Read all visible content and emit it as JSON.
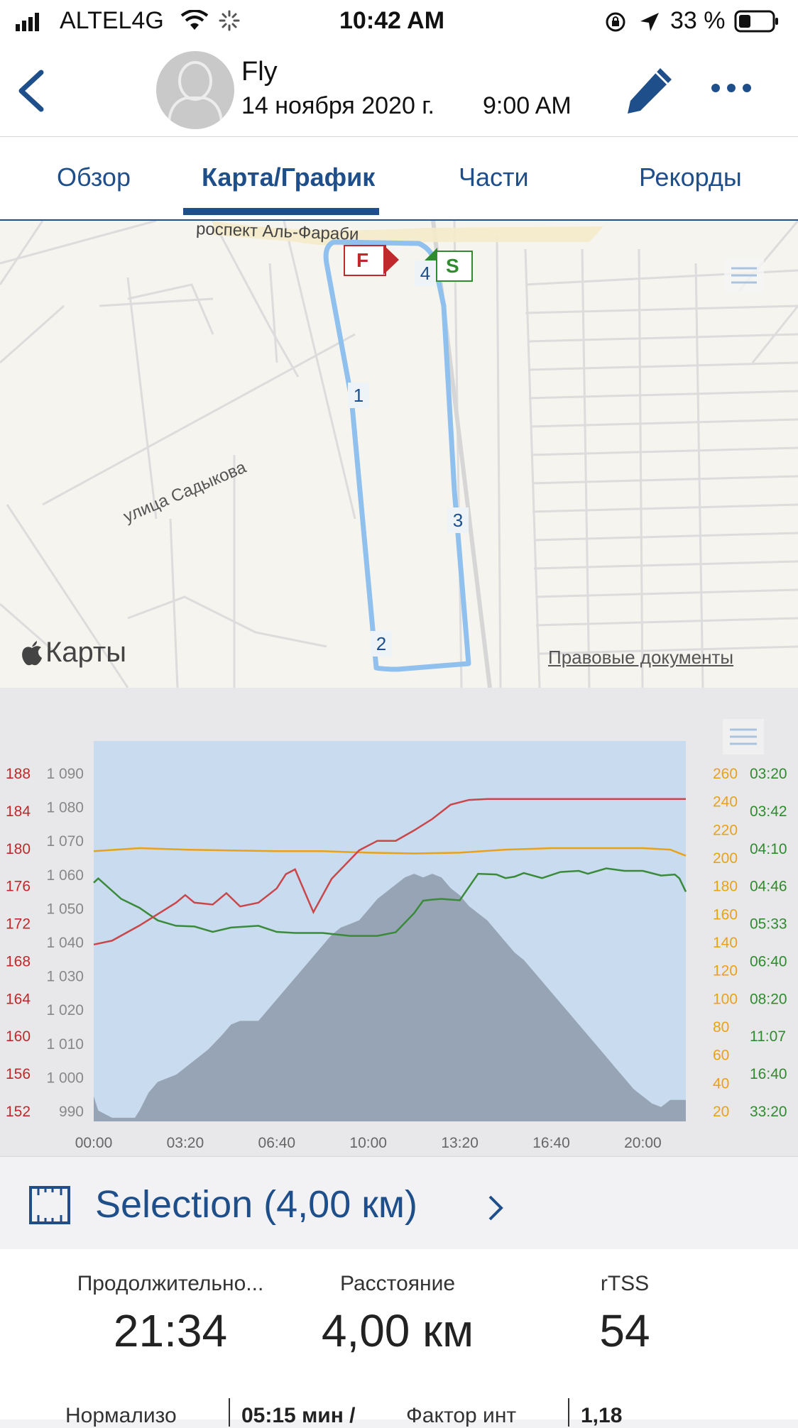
{
  "status_bar": {
    "carrier": "ALTEL4G",
    "time": "10:42 AM",
    "battery": "33 %",
    "icons": [
      "signal-icon",
      "wifi-icon",
      "activity-spinner-icon",
      "rotation-lock-icon",
      "location-arrow-icon",
      "battery-icon"
    ]
  },
  "header": {
    "back_icon": "chevron-left-icon",
    "title": "Fly",
    "date": "14 ноября 2020 г.",
    "time": "9:00 AM",
    "edit_icon": "pencil-icon",
    "more_icon": "more-dots-icon"
  },
  "tabs": [
    {
      "label": "Обзор",
      "active": false
    },
    {
      "label": "Карта/График",
      "active": true
    },
    {
      "label": "Части",
      "active": false
    },
    {
      "label": "Рекорды",
      "active": false
    }
  ],
  "map": {
    "street_top": "роспект Аль-Фараби",
    "street_left": "улица Садыкова",
    "maps_brand": "Карты",
    "legal_link": "Правовые документы",
    "finish_marker": "F",
    "start_marker": "S",
    "split_markers": [
      "1",
      "2",
      "3",
      "4"
    ],
    "route_color": "#8fc0ee"
  },
  "chart_data": {
    "type": "line",
    "x_ticks": [
      "00:00",
      "03:20",
      "06:40",
      "10:00",
      "13:20",
      "16:40",
      "20:00"
    ],
    "x_range_seconds": [
      0,
      1294
    ],
    "axes": {
      "heart_rate": {
        "color": "#c0282b",
        "ticks": [
          "152",
          "156",
          "160",
          "164",
          "168",
          "172",
          "176",
          "180",
          "184",
          "188"
        ],
        "range": [
          150,
          190
        ]
      },
      "elevation": {
        "color": "#888888",
        "ticks": [
          "990",
          "1 000",
          "1 010",
          "1 020",
          "1 030",
          "1 040",
          "1 050",
          "1 060",
          "1 070",
          "1 080",
          "1 090"
        ],
        "range": [
          987,
          1093
        ]
      },
      "cadence": {
        "color": "#e8a21a",
        "ticks": [
          "20",
          "40",
          "60",
          "80",
          "100",
          "120",
          "140",
          "160",
          "180",
          "200",
          "220",
          "240",
          "260"
        ],
        "range": [
          12,
          264
        ]
      },
      "pace": {
        "color": "#2e8b2e",
        "ticks": [
          "03:20",
          "03:42",
          "04:10",
          "04:46",
          "05:33",
          "06:40",
          "08:20",
          "11:07",
          "16:40",
          "33:20"
        ]
      }
    },
    "series": [
      {
        "name": "heart_rate",
        "color": "#c8474b",
        "unit_axis": "heart_rate",
        "x": [
          0,
          40,
          100,
          180,
          200,
          220,
          260,
          290,
          320,
          360,
          400,
          420,
          440,
          480,
          520,
          560,
          580,
          620,
          660,
          700,
          740,
          780,
          820,
          860,
          900,
          940,
          1000,
          1100,
          1200,
          1294
        ],
        "y": [
          168.6,
          169,
          170.6,
          173,
          173.8,
          173,
          172.8,
          174,
          172.6,
          173,
          174.5,
          176,
          176.5,
          172,
          175.5,
          177.5,
          178.5,
          179.5,
          179.5,
          180.6,
          181.8,
          183.3,
          183.8,
          183.9,
          183.9,
          183.9,
          183.9,
          183.9,
          183.9,
          183.9
        ]
      },
      {
        "name": "cadence",
        "color": "#e8a21a",
        "unit_axis": "cadence",
        "x": [
          0,
          100,
          200,
          300,
          400,
          500,
          600,
          700,
          800,
          900,
          1000,
          1100,
          1200,
          1260,
          1294
        ],
        "y": [
          191,
          193,
          192,
          191.5,
          191,
          191,
          190,
          189.5,
          190,
          192,
          193,
          193,
          193,
          192,
          188
        ]
      },
      {
        "name": "pace",
        "color": "#3a8a3a",
        "unit_axis": "elevation",
        "x": [
          0,
          10,
          60,
          100,
          140,
          180,
          220,
          260,
          300,
          360,
          400,
          440,
          500,
          560,
          620,
          660,
          700,
          720,
          740,
          760,
          800,
          840,
          880,
          900,
          920,
          940,
          980,
          1020,
          1060,
          1080,
          1120,
          1160,
          1200,
          1240,
          1270,
          1280,
          1294
        ],
        "y": [
          1053.5,
          1054.7,
          1049,
          1046.5,
          1043,
          1041.5,
          1041.3,
          1039.8,
          1041,
          1041.5,
          1039.8,
          1039.5,
          1039.5,
          1038.7,
          1038.7,
          1039.7,
          1045,
          1048.5,
          1048.8,
          1049,
          1048.6,
          1056,
          1055.8,
          1054.8,
          1055.2,
          1056.2,
          1054.8,
          1056.5,
          1056.8,
          1056,
          1057.5,
          1056.8,
          1056.8,
          1055.5,
          1055.8,
          1054.7,
          1051
        ]
      },
      {
        "name": "elevation",
        "color": "#8e9aab",
        "unit_axis": "elevation",
        "x": [
          0,
          10,
          40,
          70,
          90,
          100,
          120,
          140,
          160,
          180,
          200,
          220,
          250,
          280,
          300,
          320,
          360,
          380,
          400,
          420,
          440,
          460,
          480,
          500,
          520,
          540,
          560,
          580,
          600,
          620,
          640,
          660,
          680,
          700,
          720,
          740,
          760,
          780,
          800,
          820,
          840,
          860,
          880,
          900,
          920,
          940,
          960,
          980,
          1000,
          1020,
          1040,
          1060,
          1080,
          1100,
          1120,
          1140,
          1160,
          1180,
          1200,
          1220,
          1240,
          1260,
          1280,
          1294
        ],
        "y": [
          994,
          990,
          988,
          988,
          988,
          990,
          995,
          998,
          999,
          1000,
          1002,
          1004,
          1007,
          1011,
          1014,
          1015,
          1015,
          1018,
          1021,
          1024,
          1027,
          1030,
          1033,
          1036,
          1039,
          1041,
          1042,
          1043,
          1046,
          1049,
          1051,
          1053,
          1055,
          1056,
          1055,
          1056,
          1055,
          1052,
          1050,
          1047,
          1045,
          1043,
          1040,
          1037,
          1034,
          1032,
          1029,
          1026,
          1023,
          1020,
          1017,
          1014,
          1011,
          1008,
          1005,
          1002,
          999,
          996,
          994,
          992,
          991,
          993,
          993,
          993
        ]
      }
    ]
  },
  "selection": {
    "icon": "ruler-segment-icon",
    "label": "Selection (4,00 км)",
    "chevron": "chevron-right-icon"
  },
  "stats": [
    {
      "label": "Продолжительно...",
      "value": "21:34"
    },
    {
      "label": "Расстояние",
      "value": "4,00 км"
    },
    {
      "label": "rTSS",
      "value": "54"
    }
  ],
  "stats_row2": [
    {
      "label": "Нормализо",
      "value": "05:15 мин /"
    },
    {
      "label": "Фактор инт",
      "value": "1,18"
    }
  ]
}
